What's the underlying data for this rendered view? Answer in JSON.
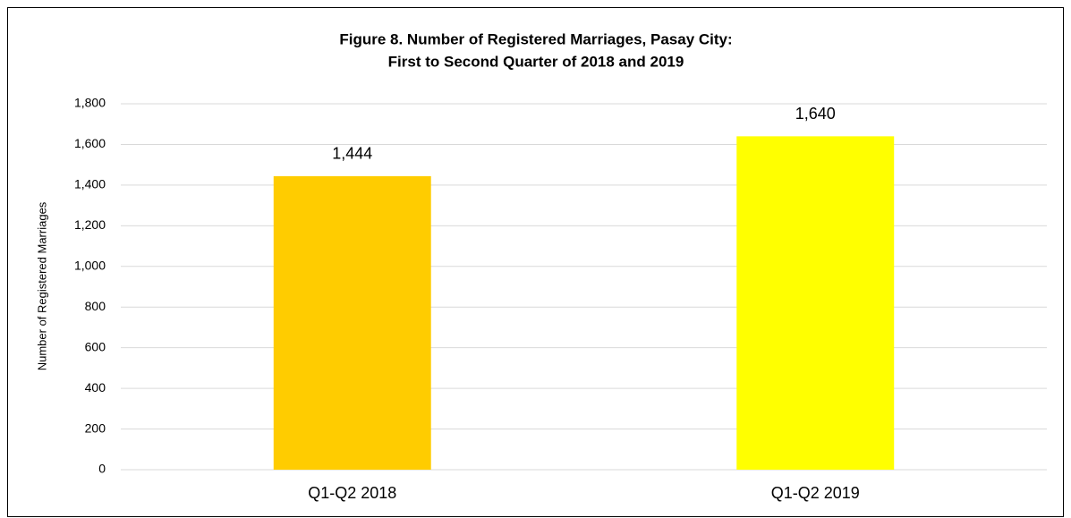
{
  "chart_data": {
    "type": "bar",
    "title": [
      "Figure 8. Number of Registered Marriages, Pasay City:",
      "First to Second Quarter of 2018 and 2019"
    ],
    "y_label": "Number of Registered Marriages",
    "categories": [
      "Q1-Q2 2018",
      "Q1-Q2 2019"
    ],
    "values": [
      1444,
      1640
    ],
    "value_labels": [
      "1,444",
      "1,640"
    ],
    "colors": [
      "#ffcc00",
      "#ffff00"
    ],
    "ylim": [
      0,
      1800
    ],
    "yticks": [
      0,
      200,
      400,
      600,
      800,
      {
        "value": 1000,
        "label": "1,000"
      },
      {
        "value": 1200,
        "label": "1,200"
      },
      {
        "value": 1400,
        "label": "1,400"
      },
      {
        "value": 1600,
        "label": "1,600"
      },
      {
        "value": 1800,
        "label": "1,800"
      }
    ],
    "grid": true
  }
}
